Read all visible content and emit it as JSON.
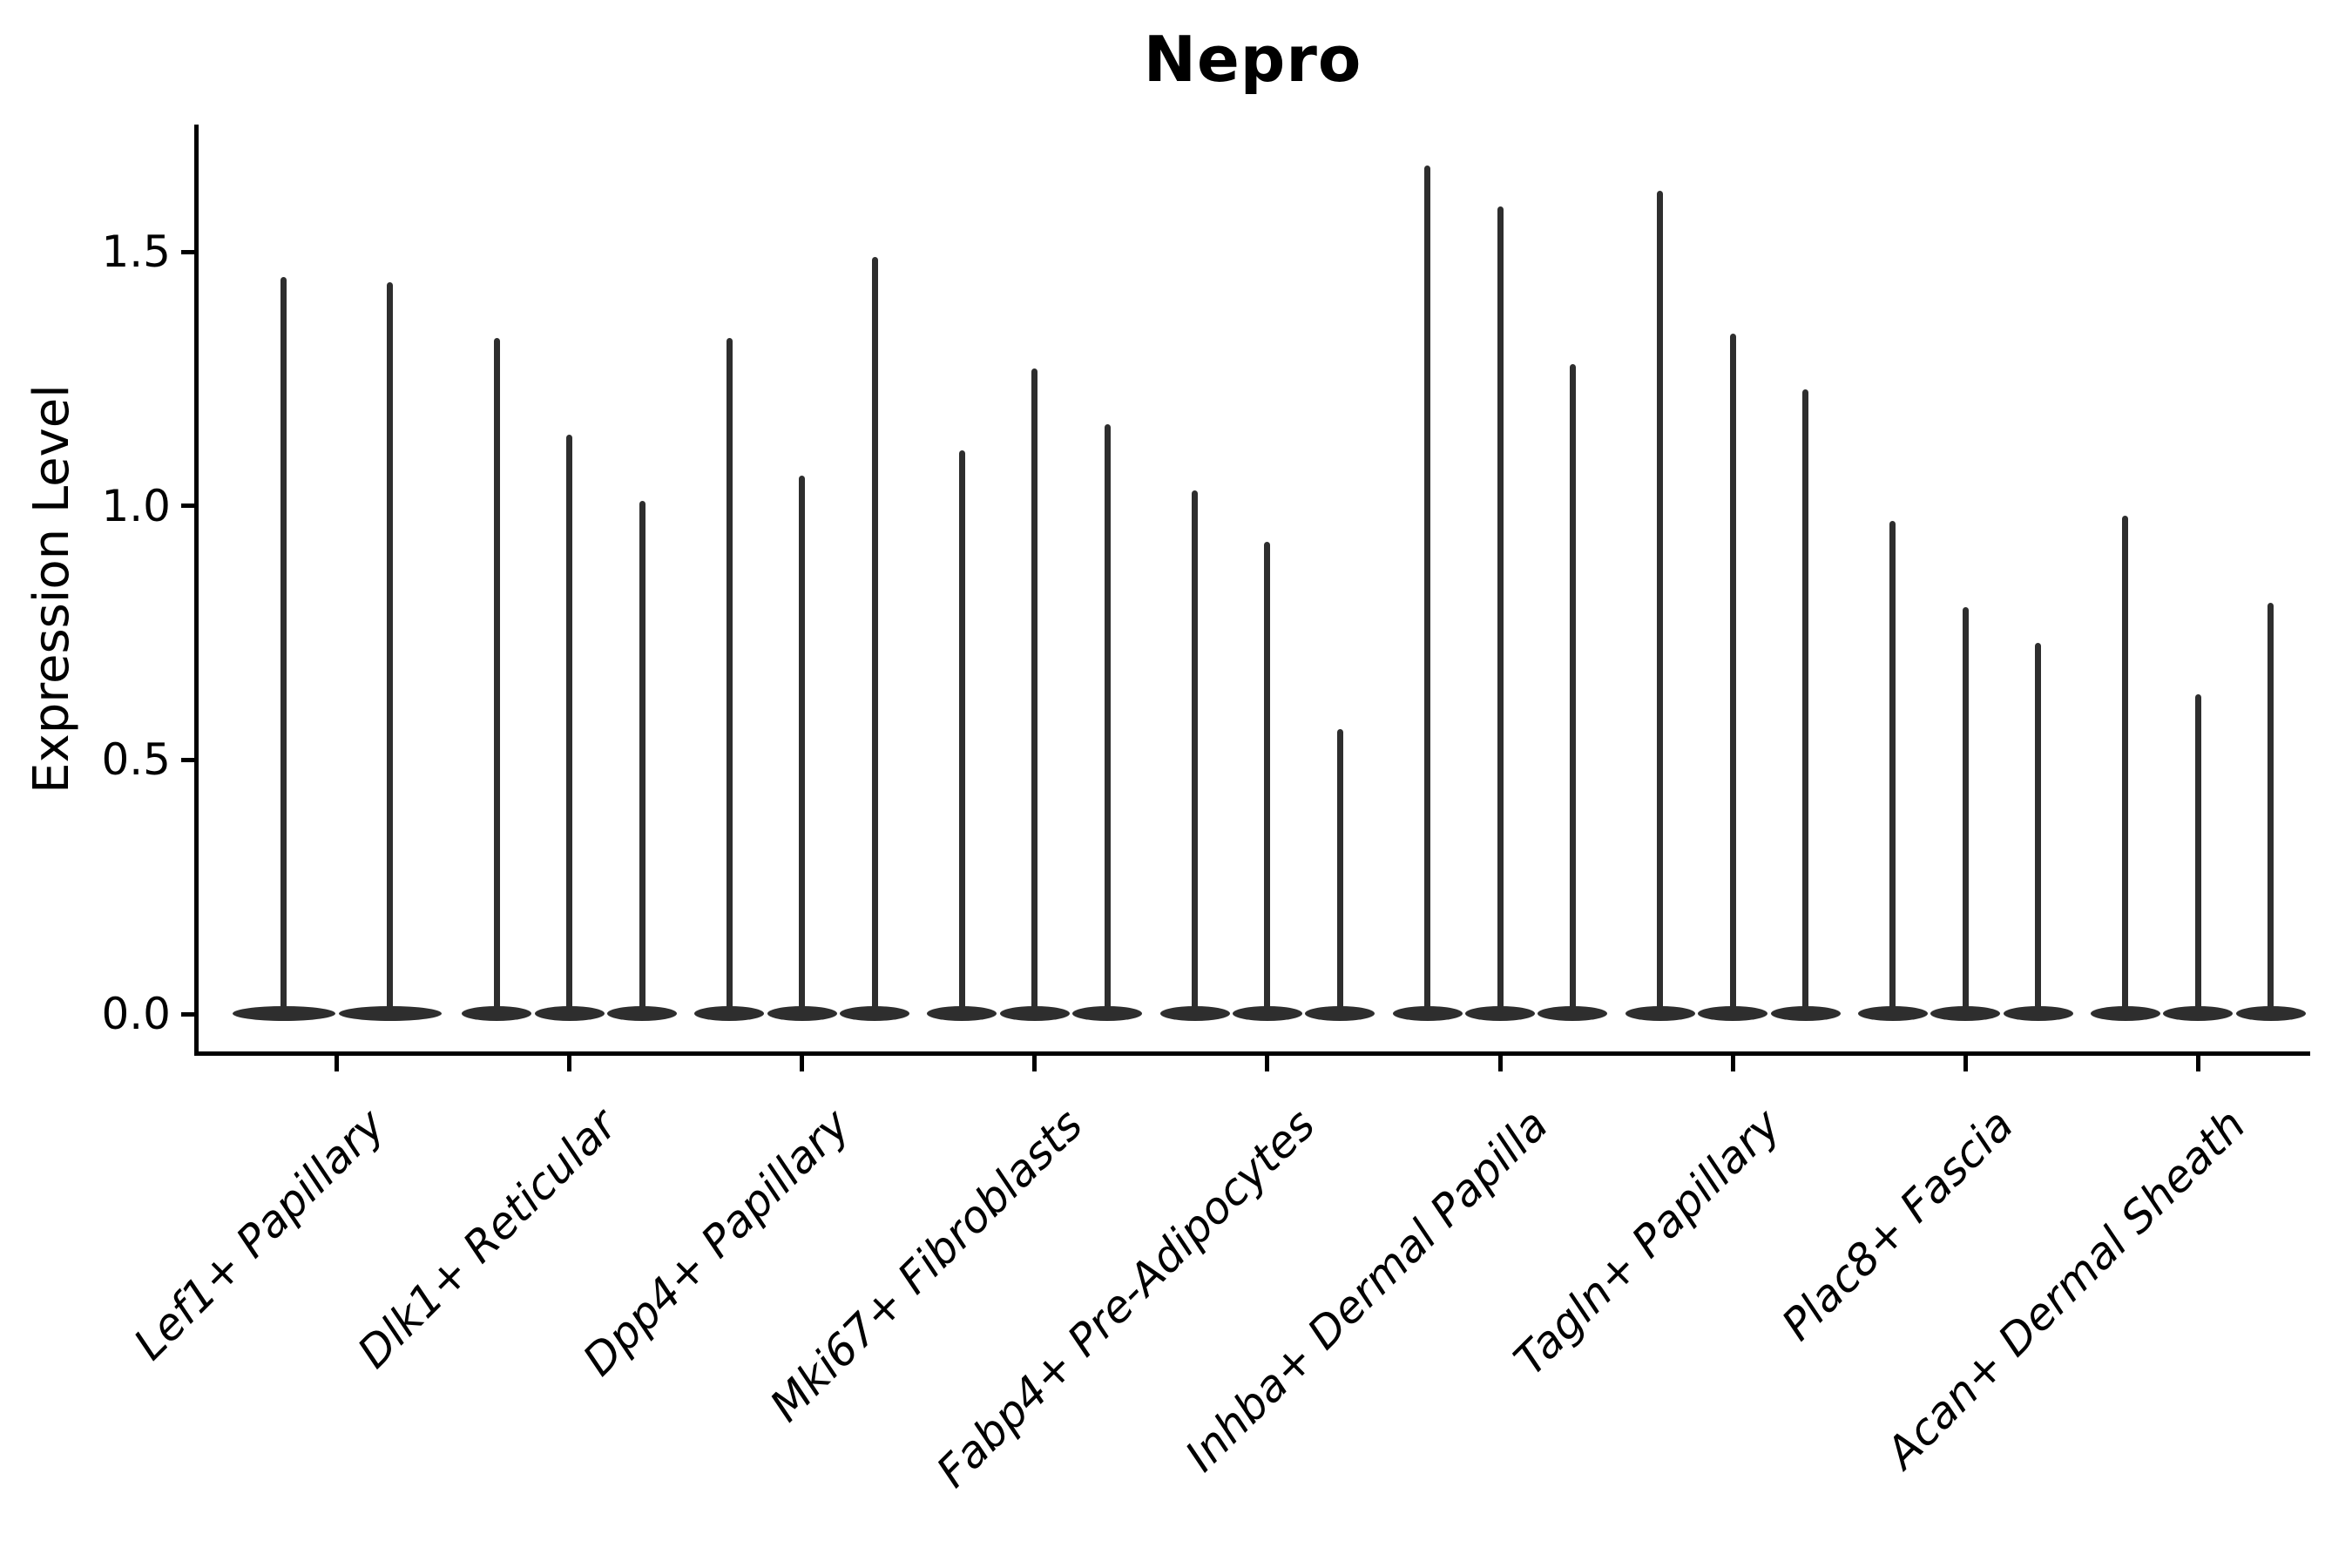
{
  "chart_data": {
    "type": "violin",
    "title": "Nepro",
    "xlabel": "",
    "ylabel": "Expression Level",
    "yticks": [
      "0.0",
      "0.5",
      "1.0",
      "1.5"
    ],
    "ytick_values": [
      0.0,
      0.5,
      1.0,
      1.5
    ],
    "ylim": [
      -0.08,
      1.75
    ],
    "grid": false,
    "legend": "none",
    "violin_color": "#2e2e2e",
    "axis_color": "#000000",
    "categories": [
      "Lef1+ Papillary",
      "Dlk1+ Reticular",
      "Dpp4+ Papillary",
      "Mki67+ Fibroblasts",
      "Fabp4+ Pre-Adipocytes",
      "Inhba+ Dermal Papilla",
      "Tagln+ Papillary",
      "Plac8+ Fascia",
      "Acan+ Dermal Sheath"
    ],
    "groups": [
      {
        "label": "Lef1+ Papillary",
        "peak_values": [
          1.45,
          1.44
        ]
      },
      {
        "label": "Dlk1+ Reticular",
        "peak_values": [
          1.33,
          1.14,
          1.01
        ]
      },
      {
        "label": "Dpp4+ Papillary",
        "peak_values": [
          1.33,
          1.06,
          1.49
        ]
      },
      {
        "label": "Mki67+ Fibroblasts",
        "peak_values": [
          1.11,
          1.27,
          1.16
        ]
      },
      {
        "label": "Fabp4+ Pre-Adipocytes",
        "peak_values": [
          1.03,
          0.93,
          0.56
        ]
      },
      {
        "label": "Inhba+ Dermal Papilla",
        "peak_values": [
          1.67,
          1.59,
          1.28
        ]
      },
      {
        "label": "Tagln+ Papillary",
        "peak_values": [
          1.62,
          1.34,
          1.23
        ]
      },
      {
        "label": "Plac8+ Fascia",
        "peak_values": [
          0.97,
          0.8,
          0.73
        ]
      },
      {
        "label": "Acan+ Dermal Sheath",
        "peak_values": [
          0.98,
          0.63,
          0.81
        ]
      }
    ]
  }
}
